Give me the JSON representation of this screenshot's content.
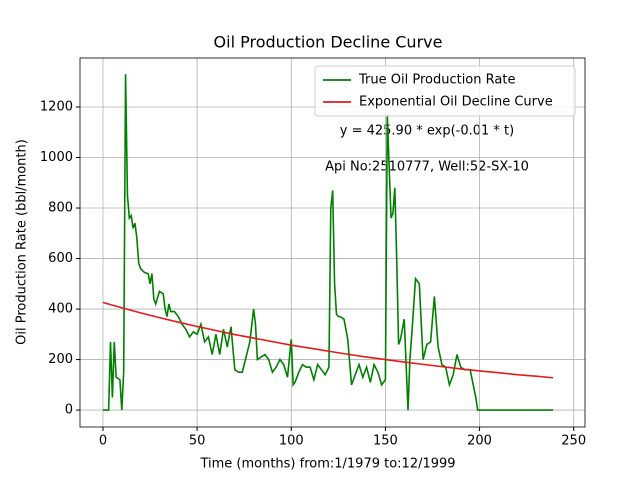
{
  "chart_data": {
    "type": "line",
    "title": "Oil Production Decline Curve",
    "x_label": "Time (months) from:1/1979 to:12/1999",
    "y_label": "Oil Production Rate (bbl/month)",
    "annotations": [
      "y = 425.90 * exp(-0.01 * t)",
      "Api No:2510777, Well:52-SX-10"
    ],
    "xlim": [
      -12.2,
      256
    ],
    "ylim": [
      -67,
      1394
    ],
    "xticks": [
      0,
      50,
      100,
      150,
      200,
      250
    ],
    "yticks": [
      0,
      200,
      400,
      600,
      800,
      1000,
      1200
    ],
    "grid": true,
    "legend": "upper right",
    "series": [
      {
        "name": "True Oil Production Rate",
        "color": "#008000",
        "x": [
          0,
          3,
          4,
          5,
          6,
          7,
          9,
          10,
          11,
          12,
          13,
          14,
          15,
          16,
          17,
          18,
          19,
          20,
          22,
          24,
          25,
          26,
          27,
          28,
          30,
          32,
          33,
          34,
          35,
          36,
          38,
          40,
          42,
          44,
          46,
          48,
          50,
          52,
          54,
          56,
          58,
          60,
          62,
          64,
          66,
          68,
          70,
          72,
          74,
          76,
          78,
          80,
          81,
          82,
          84,
          86,
          88,
          90,
          92,
          94,
          96,
          98,
          100,
          101,
          102,
          104,
          106,
          108,
          110,
          112,
          114,
          116,
          118,
          120,
          121,
          122,
          123,
          124,
          125,
          126,
          128,
          130,
          132,
          134,
          136,
          138,
          140,
          142,
          144,
          146,
          148,
          150,
          151,
          152,
          153,
          154,
          155,
          156,
          157,
          158,
          160,
          161,
          162,
          163,
          164,
          166,
          168,
          170,
          172,
          174,
          176,
          178,
          180,
          182,
          184,
          186,
          188,
          190,
          192,
          195,
          198,
          199,
          200,
          210,
          220,
          230,
          239
        ],
        "values": [
          0,
          0,
          270,
          50,
          270,
          130,
          120,
          0,
          150,
          1330,
          850,
          760,
          770,
          720,
          740,
          680,
          580,
          560,
          545,
          540,
          500,
          540,
          440,
          420,
          470,
          460,
          400,
          370,
          420,
          390,
          390,
          370,
          340,
          320,
          290,
          310,
          300,
          340,
          270,
          290,
          220,
          300,
          220,
          320,
          250,
          330,
          160,
          150,
          150,
          210,
          270,
          400,
          340,
          200,
          210,
          220,
          200,
          150,
          170,
          200,
          180,
          130,
          280,
          100,
          110,
          150,
          180,
          170,
          170,
          120,
          180,
          160,
          140,
          170,
          800,
          870,
          500,
          380,
          370,
          370,
          360,
          280,
          100,
          140,
          180,
          130,
          170,
          110,
          180,
          150,
          100,
          120,
          1170,
          960,
          760,
          780,
          880,
          600,
          260,
          280,
          360,
          180,
          0,
          200,
          300,
          520,
          500,
          200,
          260,
          270,
          450,
          250,
          180,
          170,
          100,
          140,
          220,
          170,
          160,
          160,
          50,
          0,
          0,
          0,
          0,
          0,
          0
        ]
      },
      {
        "name": "Exponential Oil Decline Curve",
        "color": "#e41a1c",
        "x": [
          0,
          10,
          20,
          30,
          40,
          50,
          60,
          70,
          80,
          90,
          100,
          110,
          120,
          130,
          140,
          150,
          160,
          170,
          180,
          190,
          200,
          210,
          220,
          230,
          239
        ],
        "values": [
          425.9,
          405,
          385,
          366,
          348,
          331,
          315,
          299,
          285,
          271,
          257,
          245,
          233,
          221,
          210,
          200,
          190,
          181,
          172,
          163,
          155,
          148,
          140,
          134,
          128
        ]
      }
    ]
  }
}
